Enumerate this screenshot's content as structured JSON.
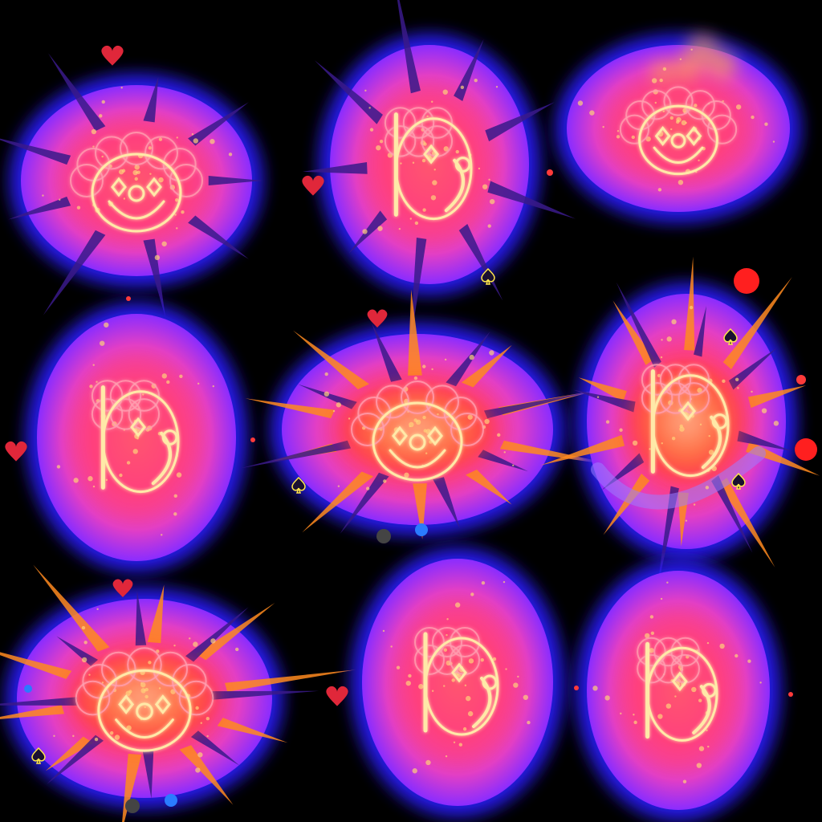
{
  "sheet": {
    "columns": 3,
    "rows": 3,
    "background": "#000000",
    "frames": [
      {
        "id": "frame-1",
        "view": "front",
        "burst": "spikes",
        "glow": "#ff3d8a",
        "halo": "#2a1cff"
      },
      {
        "id": "frame-2",
        "view": "side",
        "burst": "spikes",
        "glow": "#ff3d8a",
        "halo": "#2a1cff"
      },
      {
        "id": "frame-3",
        "view": "front-sparkle",
        "burst": "smoke",
        "glow": "#ff3d8a",
        "halo": "#2a1cff"
      },
      {
        "id": "frame-4",
        "view": "side",
        "burst": "sparkle",
        "glow": "#ff3d8a",
        "halo": "#2a1cff"
      },
      {
        "id": "frame-5",
        "view": "front",
        "burst": "explosion",
        "glow": "#ff3d8a",
        "halo": "#2a1cff"
      },
      {
        "id": "frame-6",
        "view": "side",
        "burst": "swirl-explosion",
        "glow": "#ff3d8a",
        "halo": "#2a1cff"
      },
      {
        "id": "frame-7",
        "view": "front",
        "burst": "explosion",
        "glow": "#ff3d8a",
        "halo": "#2a1cff"
      },
      {
        "id": "frame-8",
        "view": "side",
        "burst": "sparkle",
        "glow": "#ff3d8a",
        "halo": "#2a1cff"
      },
      {
        "id": "frame-9",
        "view": "side",
        "burst": "sparkle",
        "glow": "#ff3d8a",
        "halo": "#2a1cff"
      }
    ],
    "particle_icons": [
      "heart-icon",
      "spade-icon",
      "sparkle-dot"
    ],
    "colors": {
      "core": "#ff4f6e",
      "inner": "#ff7a5a",
      "outer": "#c23cff",
      "halo": "#2a1cff",
      "line": "#ffe9a8",
      "fire": "#ff9a1f",
      "heart": "#e0273a"
    }
  }
}
